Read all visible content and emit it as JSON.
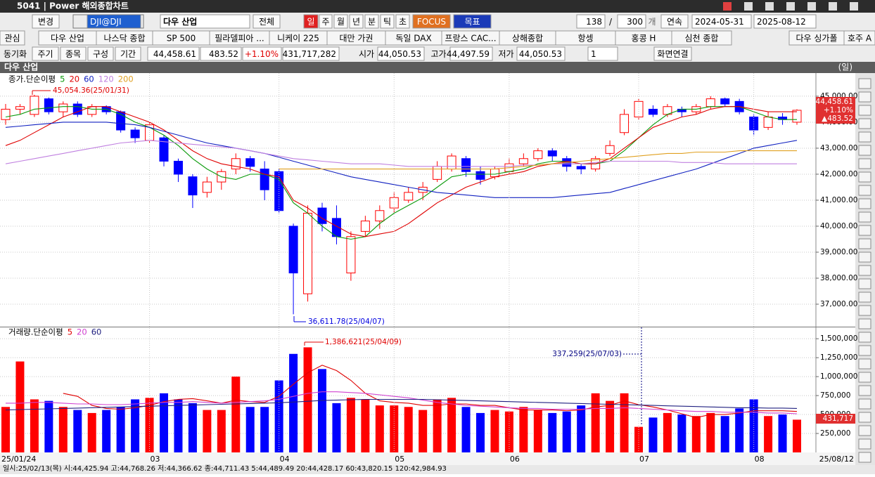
{
  "window": {
    "title": "5041 | Power 해외종합차트"
  },
  "toolbar": [
    "변경",
    "DJI@DJI",
    "다우 산업",
    "전체",
    "일",
    "주",
    "월",
    "년",
    "분",
    "틱",
    "초",
    "FOCUS",
    "목표",
    "138",
    "/",
    "300",
    "개",
    "연속",
    "2024-05-31",
    "2025-08-12"
  ],
  "tabs": [
    "관심",
    "다우 산업",
    "나스닥 종합",
    "SP 500",
    "필라델피아 ...",
    "니케이 225",
    "대만 가권",
    "독일 DAX",
    "프랑스 CAC...",
    "상해종합",
    "항셍",
    "홍콩 H",
    "심천 종합",
    "다우 싱가폴",
    "호주 A"
  ],
  "info_bar": [
    "동기화",
    "주기",
    "종목",
    "구성",
    "기간",
    "44,458.61",
    "483.52",
    "+1.10%",
    "431,717,282",
    "시가",
    "44,050.53",
    "고가",
    "44,497.59",
    "저가",
    "44,050.53",
    "1",
    "화면연결"
  ],
  "status_bar": "일시:25/02/13(목) 시:44,425.94 고:44,768.26 저:44,366.62 종:44,711.43 5:44,489.49 20:44,428.17 60:43,820.15 120:42,984.93",
  "chart_data": [
    {
      "type": "candlestick",
      "title": "다우 산업",
      "period": "(일)",
      "legend_label": "종가.단순이평",
      "categories": [
        "25/01/24",
        null,
        null,
        null,
        null,
        null,
        null,
        null,
        null,
        null,
        "03",
        null,
        null,
        null,
        null,
        null,
        null,
        null,
        null,
        "04",
        null,
        null,
        null,
        null,
        null,
        null,
        null,
        "05",
        null,
        null,
        null,
        null,
        null,
        null,
        null,
        "06",
        null,
        null,
        null,
        null,
        null,
        null,
        null,
        null,
        "07",
        null,
        null,
        null,
        null,
        null,
        null,
        null,
        "08",
        null,
        null,
        "25/08/12"
      ],
      "open": [
        44100,
        44500,
        44300,
        44900,
        44400,
        44700,
        44300,
        44600,
        44400,
        43700,
        43300,
        43400,
        42500,
        41900,
        41300,
        41700,
        42200,
        42600,
        42200,
        42100,
        40000,
        37400,
        40700,
        40300,
        38200,
        39800,
        40200,
        40700,
        41000,
        41300,
        41800,
        42200,
        42600,
        42100,
        41900,
        42100,
        42400,
        42600,
        42900,
        42600,
        42300,
        42200,
        42800,
        43600,
        44200,
        44500,
        44300,
        44500,
        44400,
        44600,
        44900,
        44800,
        44200,
        43800,
        44200,
        44000
      ],
      "high": [
        44700,
        44700,
        45054.36,
        44950,
        44800,
        44800,
        44700,
        44650,
        44450,
        43800,
        44000,
        43500,
        42600,
        42000,
        41900,
        42200,
        42800,
        42700,
        42500,
        42200,
        40100,
        40800,
        40900,
        40800,
        39800,
        40400,
        40800,
        41300,
        41500,
        41700,
        42500,
        42800,
        42700,
        42300,
        42300,
        42600,
        42800,
        43000,
        43000,
        42700,
        42400,
        42700,
        43300,
        44500,
        44900,
        44650,
        44700,
        44600,
        44700,
        45000,
        44950,
        44900,
        44300,
        44400,
        44350,
        44500
      ],
      "low": [
        43900,
        44300,
        44200,
        44300,
        44200,
        44200,
        44200,
        44300,
        43600,
        43200,
        43200,
        42300,
        41700,
        40700,
        41100,
        41400,
        42000,
        42100,
        41000,
        40500,
        36611.78,
        37100,
        39800,
        39300,
        37900,
        39600,
        39900,
        40500,
        40900,
        41000,
        41700,
        42100,
        41900,
        41600,
        41800,
        42000,
        42300,
        42500,
        42500,
        42100,
        42000,
        42100,
        42700,
        43500,
        44100,
        44200,
        44200,
        44200,
        44300,
        44500,
        44600,
        44300,
        43500,
        43700,
        43900,
        43900
      ],
      "close": [
        44500,
        44600,
        45000,
        44400,
        44700,
        44300,
        44600,
        44400,
        43700,
        43400,
        43900,
        42500,
        42000,
        41200,
        41700,
        42100,
        42600,
        42300,
        41400,
        40600,
        38200,
        40500,
        40100,
        39600,
        39600,
        40200,
        40600,
        41100,
        41300,
        41500,
        42300,
        42700,
        42100,
        41800,
        42200,
        42400,
        42600,
        42900,
        42700,
        42300,
        42200,
        42600,
        43100,
        44300,
        44800,
        44300,
        44600,
        44400,
        44600,
        44900,
        44700,
        44400,
        43700,
        44200,
        44100,
        44458.61
      ],
      "up_color": "#ff0000",
      "down_color": "#0000ff",
      "series": [
        {
          "name": "5",
          "color": "#0a9a0a",
          "values": [
            44200,
            44300,
            44500,
            44550,
            44600,
            44600,
            44500,
            44500,
            44300,
            44000,
            43800,
            43500,
            43100,
            42600,
            42200,
            41900,
            41800,
            42000,
            42000,
            41800,
            40900,
            40500,
            40000,
            39600,
            39500,
            39600,
            40100,
            40500,
            40800,
            41100,
            41500,
            41900,
            42000,
            42000,
            42000,
            42100,
            42200,
            42400,
            42500,
            42500,
            42400,
            42400,
            42500,
            42900,
            43400,
            43900,
            44300,
            44500,
            44500,
            44600,
            44600,
            44600,
            44400,
            44200,
            44100,
            44100
          ]
        },
        {
          "name": "20",
          "color": "#e00000",
          "values": [
            43100,
            43300,
            43600,
            43900,
            44200,
            44400,
            44600,
            44600,
            44400,
            44200,
            44000,
            43700,
            43300,
            42900,
            42600,
            42400,
            42300,
            42200,
            42000,
            41900,
            41000,
            40700,
            40300,
            40000,
            39700,
            39600,
            39700,
            39800,
            40100,
            40500,
            40900,
            41200,
            41500,
            41700,
            41900,
            42000,
            42100,
            42300,
            42400,
            42500,
            42400,
            42400,
            42600,
            43000,
            43400,
            43800,
            44000,
            44200,
            44300,
            44500,
            44600,
            44600,
            44500,
            44400,
            44400,
            44400
          ]
        },
        {
          "name": "60",
          "color": "#1020c0",
          "values": [
            43800,
            43850,
            43900,
            43950,
            44000,
            44000,
            44000,
            44000,
            43950,
            43900,
            43800,
            43650,
            43500,
            43350,
            43200,
            43100,
            43000,
            42900,
            42800,
            42650,
            42500,
            42350,
            42200,
            42050,
            41900,
            41800,
            41700,
            41600,
            41500,
            41400,
            41300,
            41250,
            41200,
            41150,
            41100,
            41100,
            41100,
            41100,
            41100,
            41150,
            41200,
            41250,
            41300,
            41450,
            41600,
            41750,
            41900,
            42050,
            42200,
            42400,
            42600,
            42800,
            43000,
            43100,
            43200,
            43300
          ]
        },
        {
          "name": "120",
          "color": "#c080e0",
          "values": [
            42400,
            42500,
            42600,
            42700,
            42800,
            42900,
            43000,
            43100,
            43200,
            43250,
            43300,
            43250,
            43200,
            43150,
            43100,
            43050,
            43000,
            42900,
            42800,
            42700,
            42600,
            42550,
            42500,
            42450,
            42400,
            42400,
            42400,
            42350,
            42300,
            42300,
            42300,
            42300,
            42300,
            42300,
            42300,
            42300,
            42350,
            42350,
            42400,
            42400,
            42400,
            42450,
            42500,
            42500,
            42500,
            42500,
            42500,
            42450,
            42450,
            42450,
            42400,
            42400,
            42400,
            42400,
            42400,
            42400
          ]
        },
        {
          "name": "200",
          "color": "#e0a020",
          "values": [
            null,
            null,
            null,
            null,
            null,
            null,
            null,
            null,
            null,
            null,
            null,
            null,
            null,
            null,
            null,
            null,
            null,
            null,
            null,
            42200,
            42200,
            42200,
            42200,
            42200,
            42200,
            42200,
            42200,
            42200,
            42200,
            42200,
            42200,
            42200,
            42200,
            42200,
            42200,
            42250,
            42300,
            42350,
            42400,
            42450,
            42500,
            42550,
            42600,
            42650,
            42700,
            42750,
            42800,
            42800,
            42850,
            42850,
            42850,
            42900,
            42900,
            42900,
            42900,
            42900
          ]
        }
      ],
      "ylim": [
        36135,
        45890
      ],
      "yticks": [
        {
          "value": 37000,
          "label": "37,000.00"
        },
        {
          "value": 38000,
          "label": "38,000.00"
        },
        {
          "value": 39000,
          "label": "39,000.00"
        },
        {
          "value": 40000,
          "label": "40,000.00"
        },
        {
          "value": 41000,
          "label": "41,000.00"
        },
        {
          "value": 42000,
          "label": "42,000.00"
        },
        {
          "value": 43000,
          "label": "43,000.00"
        },
        {
          "value": 44000,
          "label": "44,000.00"
        },
        {
          "value": 45000,
          "label": "45,000.00"
        }
      ],
      "grid": true,
      "annotations": [
        "45,054.36(25/01/31)",
        "36,611.78(25/04/07)"
      ],
      "last_labels": [
        "44,458.61",
        "+1.10%",
        "▲483.52"
      ]
    },
    {
      "type": "bar",
      "legend_label": "거래량.단순이평",
      "values": [
        600000,
        1200000,
        700000,
        680000,
        600000,
        560000,
        520000,
        560000,
        600000,
        700000,
        720000,
        780000,
        700000,
        650000,
        560000,
        560000,
        1000000,
        600000,
        600000,
        950000,
        1300000,
        1386621,
        1100000,
        650000,
        720000,
        700000,
        620000,
        620000,
        600000,
        560000,
        700000,
        720000,
        600000,
        520000,
        560000,
        540000,
        600000,
        560000,
        520000,
        540000,
        620000,
        780000,
        680000,
        780000,
        337259,
        460000,
        520000,
        500000,
        480000,
        520000,
        480000,
        580000,
        700000,
        480000,
        500000,
        431717
      ],
      "series": [
        {
          "name": "5",
          "color": "#e00000",
          "values": [
            null,
            null,
            null,
            null,
            780000,
            740000,
            620000,
            580000,
            570000,
            590000,
            620000,
            670000,
            700000,
            710000,
            680000,
            650000,
            690000,
            670000,
            660000,
            740000,
            900000,
            1050000,
            1150000,
            1080000,
            950000,
            780000,
            680000,
            660000,
            650000,
            620000,
            620000,
            640000,
            640000,
            620000,
            620000,
            590000,
            560000,
            560000,
            560000,
            550000,
            560000,
            600000,
            620000,
            680000,
            630000,
            600000,
            560000,
            510000,
            460000,
            500000,
            500000,
            520000,
            550000,
            550000,
            550000,
            540000
          ]
        },
        {
          "name": "20",
          "color": "#d040d0",
          "values": [
            650000,
            650000,
            660000,
            660000,
            650000,
            640000,
            640000,
            630000,
            630000,
            640000,
            650000,
            660000,
            660000,
            670000,
            660000,
            650000,
            660000,
            670000,
            680000,
            700000,
            740000,
            780000,
            800000,
            800000,
            790000,
            780000,
            760000,
            740000,
            720000,
            690000,
            660000,
            640000,
            620000,
            610000,
            600000,
            590000,
            580000,
            580000,
            570000,
            570000,
            570000,
            580000,
            580000,
            590000,
            580000,
            570000,
            560000,
            550000,
            540000,
            540000,
            530000,
            530000,
            530000,
            520000,
            520000,
            510000
          ]
        },
        {
          "name": "60",
          "color": "#202080",
          "values": [
            560000,
            565000,
            570000,
            575000,
            580000,
            585000,
            590000,
            595000,
            600000,
            605000,
            610000,
            615000,
            620000,
            625000,
            630000,
            635000,
            640000,
            645000,
            650000,
            655000,
            665000,
            675000,
            685000,
            690000,
            695000,
            700000,
            700000,
            700000,
            700000,
            700000,
            695000,
            690000,
            685000,
            680000,
            675000,
            670000,
            665000,
            660000,
            655000,
            650000,
            645000,
            640000,
            635000,
            630000,
            625000,
            620000,
            615000,
            610000,
            605000,
            600000,
            595000,
            590000,
            590000,
            585000,
            585000,
            580000
          ]
        }
      ],
      "ylim": [
        0,
        1650000
      ],
      "yticks": [
        {
          "value": 250000,
          "label": "250,000"
        },
        {
          "value": 500000,
          "label": "500,000"
        },
        {
          "value": 750000,
          "label": "750,000"
        },
        {
          "value": 1000000,
          "label": "1,000,000"
        },
        {
          "value": 1250000,
          "label": "1,250,000"
        },
        {
          "value": 1500000,
          "label": "1,500,000"
        }
      ],
      "grid": true,
      "annotations": [
        "1,386,621(25/04/09)",
        "337,259(25/07/03)"
      ],
      "last_labels": [
        "431,717"
      ]
    }
  ]
}
